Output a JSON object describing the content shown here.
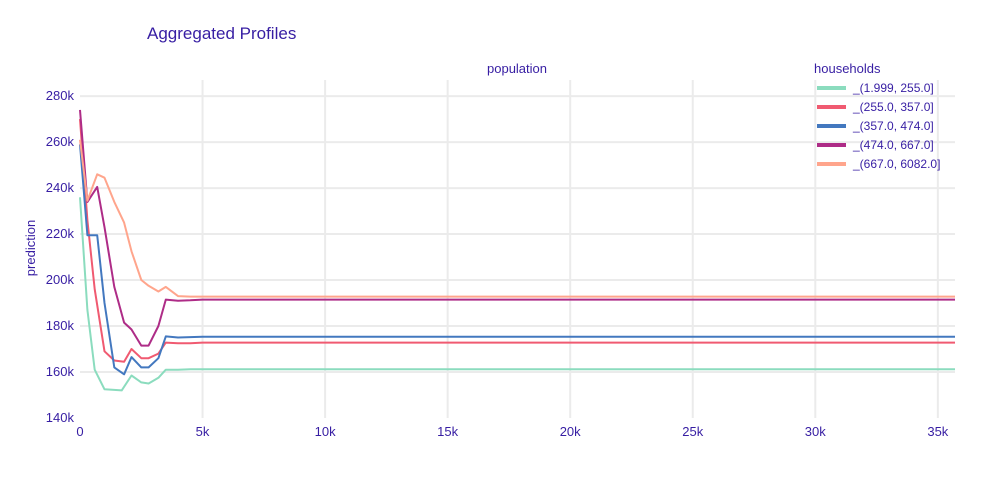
{
  "chart_data": {
    "type": "line",
    "title": "Aggregated Profiles",
    "xlabel": "population",
    "ylabel": "prediction",
    "xlim": [
      0,
      35700
    ],
    "ylim": [
      140000,
      287000
    ],
    "x_ticks": [
      0,
      5000,
      10000,
      15000,
      20000,
      25000,
      30000,
      35000
    ],
    "x_tick_labels": [
      "0",
      "5k",
      "10k",
      "15k",
      "20k",
      "25k",
      "30k",
      "35k"
    ],
    "y_ticks": [
      140000,
      160000,
      180000,
      200000,
      220000,
      240000,
      260000,
      280000
    ],
    "y_tick_labels": [
      "140k",
      "160k",
      "180k",
      "200k",
      "220k",
      "240k",
      "260k",
      "280k"
    ],
    "grid": true,
    "legend_title": "households",
    "legend_position": "top-right",
    "series": [
      {
        "name": "_(1.999, 255.0]",
        "color": "#8bdcbe",
        "x": [
          0,
          300,
          600,
          1000,
          1700,
          2100,
          2500,
          2800,
          3200,
          3500,
          4000,
          4500,
          5000,
          35700
        ],
        "y": [
          236000,
          187000,
          161000,
          152500,
          152000,
          158500,
          155500,
          155000,
          157500,
          161000,
          161000,
          161200,
          161200,
          161200
        ]
      },
      {
        "name": "_(255.0, 357.0]",
        "color": "#f05a71",
        "x": [
          0,
          300,
          600,
          1000,
          1400,
          1800,
          2100,
          2500,
          2800,
          3200,
          3500,
          4000,
          4500,
          5000,
          35700
        ],
        "y": [
          270000,
          226000,
          196000,
          169000,
          165000,
          164500,
          170000,
          166000,
          166000,
          168000,
          172800,
          172500,
          172500,
          172800,
          172800
        ]
      },
      {
        "name": "_(357.0, 474.0]",
        "color": "#4378bf",
        "x": [
          0,
          300,
          700,
          1000,
          1400,
          1800,
          2100,
          2500,
          2800,
          3200,
          3500,
          4000,
          4500,
          5000,
          35700
        ],
        "y": [
          259000,
          219500,
          219500,
          190000,
          162000,
          159000,
          166500,
          162000,
          162000,
          166000,
          175500,
          175000,
          175200,
          175300,
          175300
        ]
      },
      {
        "name": "_(474.0, 667.0]",
        "color": "#ae2c87",
        "x": [
          0,
          300,
          700,
          1000,
          1400,
          1800,
          2100,
          2500,
          2800,
          3200,
          3500,
          4000,
          4500,
          5000,
          35700
        ],
        "y": [
          274000,
          234000,
          240500,
          223000,
          197000,
          181500,
          178500,
          171500,
          171500,
          180000,
          191500,
          191000,
          191200,
          191500,
          191500
        ]
      },
      {
        "name": "_(667.0, 6082.0]",
        "color": "#ffa58c",
        "x": [
          0,
          300,
          700,
          1000,
          1400,
          1800,
          2100,
          2500,
          2800,
          3200,
          3500,
          4000,
          4500,
          5000,
          35700
        ],
        "y": [
          261000,
          234500,
          246000,
          244500,
          234000,
          225000,
          212500,
          200000,
          197500,
          195000,
          197000,
          193000,
          192800,
          192800,
          192800
        ]
      }
    ]
  }
}
